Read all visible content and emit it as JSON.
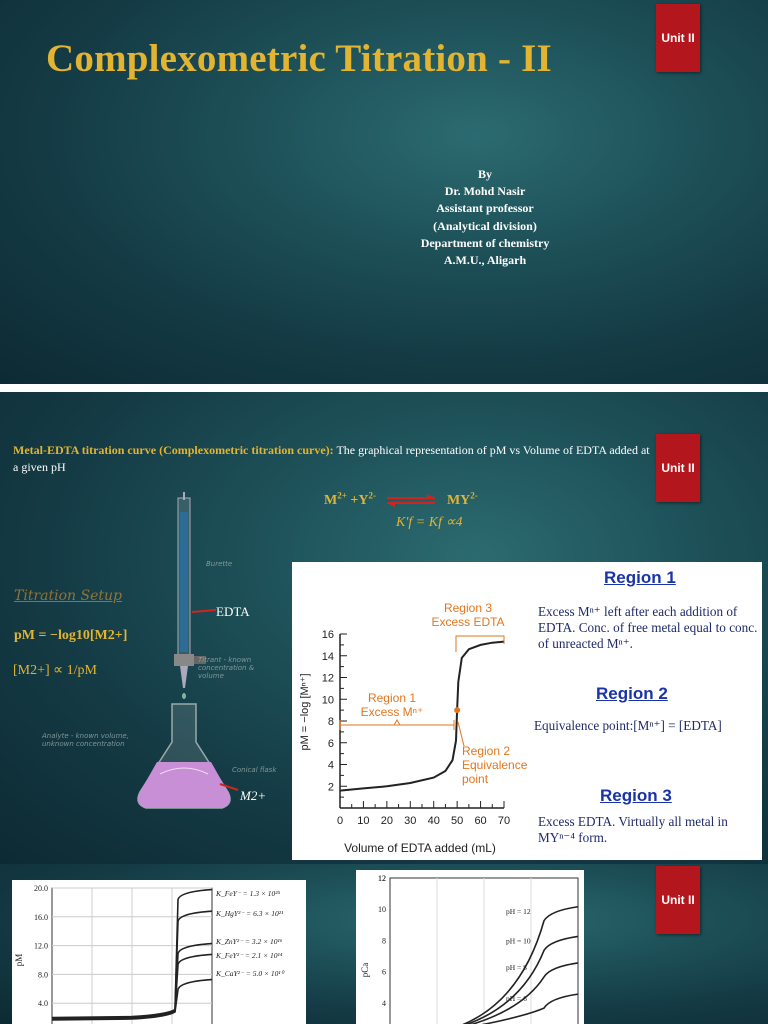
{
  "slide1": {
    "title": "Complexometric Titration - II",
    "unit_badge": "Unit II",
    "author_lines": [
      "By",
      "Dr. Mohd Nasir",
      "Assistant professor",
      "(Analytical division)",
      "Department of chemistry",
      "A.M.U., Aligarh"
    ]
  },
  "slide2": {
    "unit_badge": "Unit II",
    "heading_bold": "Metal-EDTA titration curve (Complexometric titration curve):",
    "heading_rest": " The graphical representation of pM vs Volume of EDTA added at a given pH",
    "reaction_left": "M2+ +Y2-",
    "reaction_right": "MY2-",
    "kf_eq": "K′f = Kf ∝4",
    "setup_title": "Titration Setup",
    "pm_eq": "pM = −log10[M2+]",
    "m_eq": "[M2+] ∝ 1/pM",
    "edta_label": "EDTA",
    "m2_label": "M2+",
    "sketch_labels": {
      "burette": "Burette",
      "conical": "Conical flask",
      "titrant": "Titrant - known concentration & volume",
      "analyte": "Analyte - known volume, unknown concentration"
    },
    "chart_data": {
      "type": "line",
      "title": "",
      "xlabel": "Volume of EDTA added (mL)",
      "ylabel": "pM = −log [Mⁿ⁺]",
      "xlim": [
        0,
        70
      ],
      "ylim": [
        0,
        16
      ],
      "x_ticks": [
        "0",
        "10",
        "20",
        "30",
        "40",
        "50",
        "60",
        "70"
      ],
      "y_ticks": [
        "2",
        "4",
        "6",
        "8",
        "10",
        "12",
        "14",
        "16"
      ],
      "series": [
        {
          "x": [
            0,
            10,
            20,
            30,
            40,
            45,
            48,
            49.5,
            50,
            50.5,
            52,
            55,
            60,
            65,
            70
          ],
          "y": [
            1.6,
            1.8,
            2.0,
            2.3,
            2.8,
            3.4,
            4.4,
            6.2,
            9.0,
            11.6,
            13.8,
            14.6,
            15.0,
            15.2,
            15.3
          ]
        }
      ],
      "annotations": [
        {
          "text": "Region 3\nExcess EDTA"
        },
        {
          "text": "Region 1\nExcess Mⁿ⁺"
        },
        {
          "text": "Region 2\nEquivalence\npoint"
        }
      ]
    },
    "regions": [
      {
        "title": "Region 1",
        "text": "Excess Mⁿ⁺ left after each addition of EDTA. Conc. of free metal equal to conc. of unreacted Mⁿ⁺."
      },
      {
        "title": "Region 2",
        "text": "Equivalence point:[Mⁿ⁺] = [EDTA]"
      },
      {
        "title": "Region 3",
        "text": "Excess EDTA.  Virtually all metal in MYⁿ⁻⁴ form."
      }
    ]
  },
  "slide3": {
    "unit_badge": "Unit II",
    "chart_data": [
      {
        "type": "line",
        "ylabel": "pM",
        "ylim": [
          0,
          20
        ],
        "y_ticks": [
          "4.0",
          "8.0",
          "12.0",
          "16.0",
          "20.0"
        ],
        "legend": [
          "K_FeY⁻ = 1.3 × 10²⁵",
          "K_HgY²⁻ = 6.3 × 10²¹",
          "K_ZnY²⁻ = 3.2 × 10¹⁶",
          "K_FeY²⁻ = 2.1 × 10¹⁴",
          "K_CaY²⁻ = 5.0 × 10¹⁰"
        ],
        "series": [
          {
            "name": "K_FeY⁻ = 1.3 × 10²⁵",
            "y_before": 2.0,
            "y_after": 19.5
          },
          {
            "name": "K_HgY²⁻ = 6.3 × 10²¹",
            "y_before": 2.0,
            "y_after": 16.5
          },
          {
            "name": "K_ZnY²⁻ = 3.2 × 10¹⁶",
            "y_before": 2.0,
            "y_after": 12.0
          },
          {
            "name": "K_FeY²⁻ = 2.1 × 10¹⁴",
            "y_before": 2.0,
            "y_after": 10.5
          },
          {
            "name": "K_CaY²⁻ = 5.0 × 10¹⁰",
            "y_before": 2.0,
            "y_after": 7.0
          }
        ]
      },
      {
        "type": "line",
        "ylabel": "pCa",
        "ylim": [
          2,
          12
        ],
        "y_ticks": [
          "4",
          "6",
          "8",
          "10",
          "12"
        ],
        "legend": [
          "pH = 12",
          "pH = 10",
          "pH = 8",
          "pH = 6"
        ],
        "series": [
          {
            "name": "pH = 12",
            "y_after": 9.9
          },
          {
            "name": "pH = 10",
            "y_after": 8.0
          },
          {
            "name": "pH = 8",
            "y_after": 6.3
          },
          {
            "name": "pH = 6",
            "y_after": 4.3
          }
        ]
      }
    ]
  }
}
